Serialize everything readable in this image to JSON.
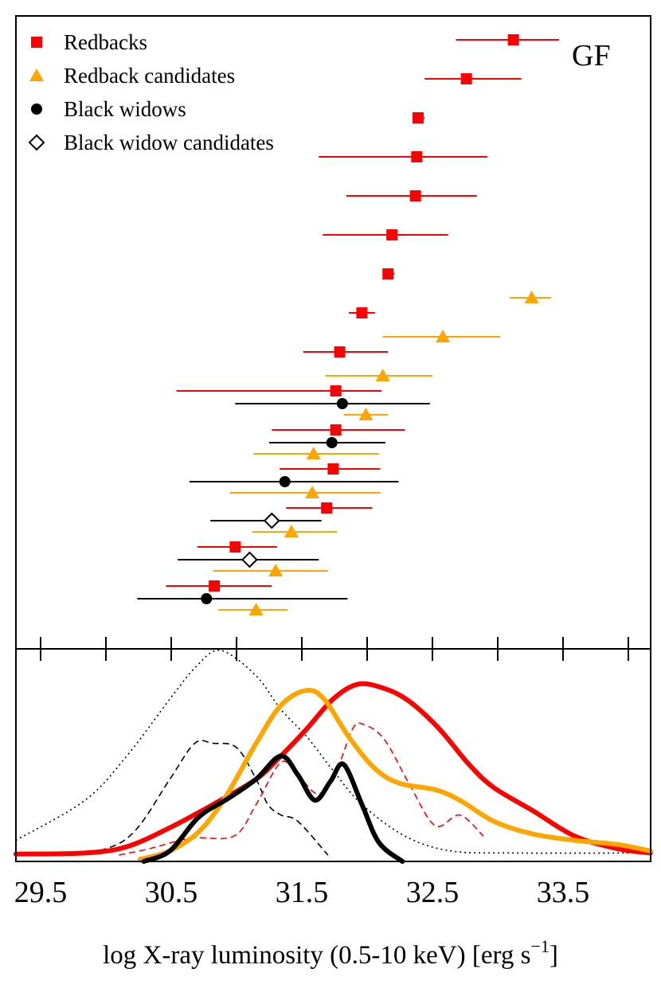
{
  "chart_data": [
    {
      "type": "scatter",
      "annotation": "GF",
      "xlim": [
        29.31,
        34.17
      ],
      "legend": {
        "placement": "top-left",
        "entries": [
          {
            "label": "Redbacks",
            "marker": "square",
            "color": "#ff0000"
          },
          {
            "label": "Redback candidates",
            "marker": "triangle",
            "color": "#ffa500"
          },
          {
            "label": "Black widows",
            "marker": "circle",
            "color": "#000000"
          },
          {
            "label": "Black widow candidates",
            "marker": "diamond-open",
            "color": "#000000"
          }
        ]
      },
      "points": [
        {
          "cls": "redback",
          "x": 33.12,
          "lo": 32.68,
          "hi": 33.47
        },
        {
          "cls": "redback",
          "x": 32.76,
          "lo": 32.44,
          "hi": 33.18
        },
        {
          "cls": "redback",
          "x": 32.39,
          "lo": 32.35,
          "hi": 32.44
        },
        {
          "cls": "redback",
          "x": 32.38,
          "lo": 31.63,
          "hi": 32.92
        },
        {
          "cls": "redback",
          "x": 32.37,
          "lo": 31.84,
          "hi": 32.84
        },
        {
          "cls": "redback",
          "x": 32.19,
          "lo": 31.66,
          "hi": 32.62
        },
        {
          "cls": "redback",
          "x": 32.16,
          "lo": 32.12,
          "hi": 32.21
        },
        {
          "cls": "redback",
          "x": 31.96,
          "lo": 31.86,
          "hi": 32.06
        },
        {
          "cls": "redback",
          "x": 31.79,
          "lo": 31.51,
          "hi": 32.16
        },
        {
          "cls": "redback",
          "x": 31.76,
          "lo": 30.54,
          "hi": 32.11
        },
        {
          "cls": "redback",
          "x": 31.76,
          "lo": 31.27,
          "hi": 32.29
        },
        {
          "cls": "redback",
          "x": 31.74,
          "lo": 31.33,
          "hi": 32.1
        },
        {
          "cls": "redback",
          "x": 31.69,
          "lo": 31.38,
          "hi": 32.04
        },
        {
          "cls": "redback",
          "x": 30.99,
          "lo": 30.7,
          "hi": 31.31
        },
        {
          "cls": "redback",
          "x": 30.83,
          "lo": 30.46,
          "hi": 31.27
        },
        {
          "cls": "redback_candidate",
          "x": 33.26,
          "lo": 33.09,
          "hi": 33.41
        },
        {
          "cls": "redback_candidate",
          "x": 32.58,
          "lo": 32.12,
          "hi": 33.02
        },
        {
          "cls": "redback_candidate",
          "x": 32.12,
          "lo": 31.68,
          "hi": 32.5
        },
        {
          "cls": "redback_candidate",
          "x": 31.99,
          "lo": 31.82,
          "hi": 32.16
        },
        {
          "cls": "redback_candidate",
          "x": 31.59,
          "lo": 31.13,
          "hi": 32.09
        },
        {
          "cls": "redback_candidate",
          "x": 31.58,
          "lo": 30.95,
          "hi": 32.1
        },
        {
          "cls": "redback_candidate",
          "x": 31.42,
          "lo": 31.12,
          "hi": 31.77
        },
        {
          "cls": "redback_candidate",
          "x": 31.3,
          "lo": 30.82,
          "hi": 31.7
        },
        {
          "cls": "redback_candidate",
          "x": 31.15,
          "lo": 30.86,
          "hi": 31.39
        },
        {
          "cls": "black_widow",
          "x": 31.81,
          "lo": 30.99,
          "hi": 32.48
        },
        {
          "cls": "black_widow",
          "x": 31.73,
          "lo": 31.25,
          "hi": 32.14
        },
        {
          "cls": "black_widow",
          "x": 31.37,
          "lo": 30.64,
          "hi": 32.24
        },
        {
          "cls": "black_widow_candidate",
          "x": 31.27,
          "lo": 30.8,
          "hi": 31.65
        },
        {
          "cls": "black_widow_candidate",
          "x": 31.1,
          "lo": 30.55,
          "hi": 31.63
        },
        {
          "cls": "black_widow",
          "x": 30.77,
          "lo": 30.24,
          "hi": 31.85
        }
      ]
    },
    {
      "type": "line",
      "xlabel": "log X-ray luminosity (0.5-10 keV) [erg s",
      "xlabel_sup": "−1",
      "xlabel_end": "]",
      "xticks": [
        29.5,
        30.5,
        31.5,
        32.5,
        33.5
      ],
      "xminor_ticks": [
        29.5,
        30.0,
        30.5,
        31.0,
        31.5,
        32.0,
        32.5,
        33.0,
        33.5,
        34.0
      ],
      "xlim": [
        29.31,
        34.17
      ],
      "ylim": [
        0,
        1
      ],
      "series": [
        {
          "style": "dotted",
          "color": "#000000",
          "x": [
            29.31,
            29.84,
            30.16,
            30.49,
            30.7,
            30.88,
            31.15,
            31.34,
            31.54,
            31.74,
            31.96,
            32.29,
            32.64,
            33.13,
            34.17
          ],
          "y": [
            0.1,
            0.29,
            0.5,
            0.77,
            0.93,
            1.0,
            0.88,
            0.72,
            0.59,
            0.43,
            0.27,
            0.12,
            0.05,
            0.04,
            0.04
          ]
        },
        {
          "style": "dashed",
          "color": "#000000",
          "x": [
            29.64,
            30.0,
            30.23,
            30.49,
            30.68,
            30.82,
            31.0,
            31.15,
            31.24,
            31.34,
            31.47,
            31.7
          ],
          "y": [
            0.03,
            0.06,
            0.15,
            0.39,
            0.56,
            0.56,
            0.54,
            0.39,
            0.27,
            0.22,
            0.19,
            0.03
          ]
        },
        {
          "style": "dashed",
          "color": "#ff0000",
          "x": [
            30.1,
            30.33,
            30.65,
            30.98,
            31.15,
            31.34,
            31.47,
            31.63,
            31.77,
            31.89,
            31.97,
            32.13,
            32.32,
            32.52,
            32.71,
            32.89
          ],
          "y": [
            0.03,
            0.06,
            0.11,
            0.12,
            0.27,
            0.47,
            0.41,
            0.32,
            0.44,
            0.63,
            0.65,
            0.58,
            0.37,
            0.17,
            0.22,
            0.12
          ]
        },
        {
          "style": "solid-thick",
          "color": "#ff0000",
          "x": [
            29.31,
            29.84,
            30.16,
            30.49,
            30.82,
            31.15,
            31.34,
            31.54,
            31.74,
            31.93,
            32.13,
            32.32,
            32.55,
            32.78,
            32.97,
            33.27,
            33.59,
            33.92,
            34.17
          ],
          "y": [
            0.035,
            0.04,
            0.07,
            0.16,
            0.27,
            0.39,
            0.5,
            0.63,
            0.77,
            0.84,
            0.82,
            0.76,
            0.63,
            0.46,
            0.35,
            0.24,
            0.12,
            0.06,
            0.04
          ]
        },
        {
          "style": "solid-thick",
          "color": "#ffa500",
          "x": [
            30.26,
            30.49,
            30.71,
            30.91,
            31.15,
            31.34,
            31.53,
            31.67,
            31.86,
            32.06,
            32.25,
            32.52,
            32.71,
            32.97,
            33.27,
            33.59,
            33.92,
            34.17
          ],
          "y": [
            0.01,
            0.05,
            0.14,
            0.3,
            0.56,
            0.74,
            0.81,
            0.77,
            0.59,
            0.44,
            0.37,
            0.34,
            0.29,
            0.19,
            0.13,
            0.1,
            0.08,
            0.05
          ]
        },
        {
          "style": "solid-thick",
          "color": "#000000",
          "x": [
            30.29,
            30.49,
            30.71,
            30.94,
            31.15,
            31.34,
            31.47,
            31.6,
            31.72,
            31.82,
            31.96,
            32.09,
            32.27
          ],
          "y": [
            0.0,
            0.05,
            0.21,
            0.3,
            0.39,
            0.5,
            0.41,
            0.29,
            0.38,
            0.46,
            0.27,
            0.09,
            0.0
          ]
        }
      ]
    }
  ]
}
